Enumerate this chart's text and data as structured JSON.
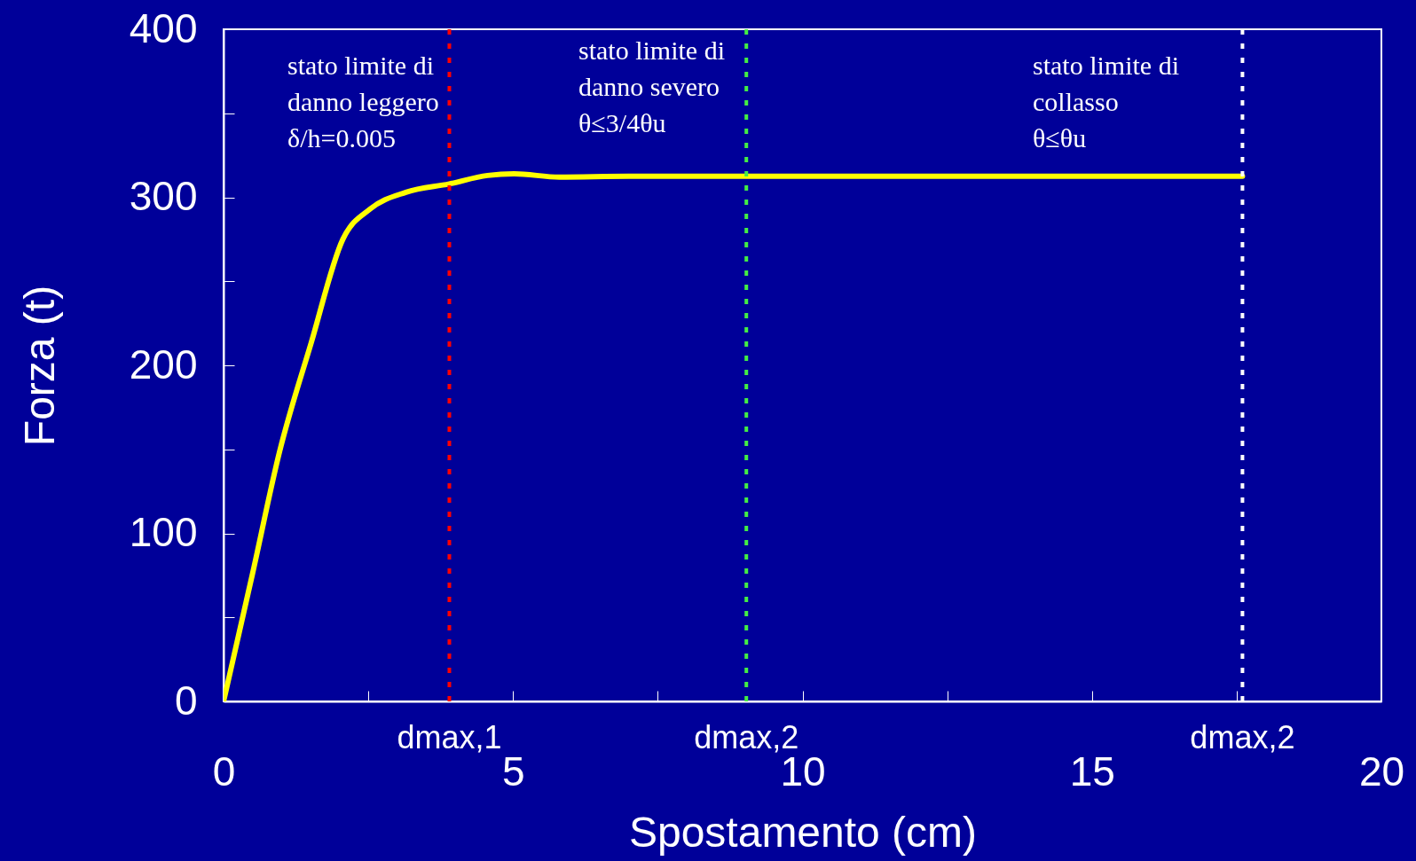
{
  "chart_data": {
    "type": "line",
    "xlabel": "Spostamento (cm)",
    "ylabel": "Forza (t)",
    "x": [
      0,
      0.5,
      0.97,
      1.51,
      2.06,
      2.53,
      3.15,
      3.9,
      4.56,
      5.02,
      5.8,
      7,
      10,
      17.6
    ],
    "series": [
      {
        "color": "#ffff00",
        "values": [
          0,
          76,
          149,
          213,
          275,
          293,
          303,
          308,
          313,
          314,
          312,
          312.5,
          312.5,
          312.5
        ]
      }
    ],
    "xlim": [
      0,
      20
    ],
    "xticks": [
      0,
      {
        "value": 2.5,
        "label": null
      },
      5,
      {
        "value": 7.5,
        "label": null
      },
      10,
      {
        "value": 12.5,
        "label": null
      },
      15,
      {
        "value": 17.5,
        "label": null
      },
      20
    ],
    "ylim": [
      0,
      400
    ],
    "yticks": [
      0,
      {
        "value": 50,
        "label": null
      },
      100,
      {
        "value": 150,
        "label": null
      },
      200,
      {
        "value": 250,
        "label": null
      },
      300,
      {
        "value": 350,
        "label": null
      },
      400
    ],
    "grid": false,
    "marker": "none",
    "line_style": "solid",
    "ref_lines": [
      {
        "axis": "x",
        "value": 3.9,
        "label": "dmax,1",
        "color": "#ff0000",
        "line_style": "dotted"
      },
      {
        "axis": "x",
        "value": 9.03,
        "label": "dmax,2",
        "color": "#44ee44",
        "line_style": "dotted"
      },
      {
        "axis": "x",
        "value": 17.6,
        "label": "dmax,2",
        "color": "#ffffff",
        "line_style": "dotted"
      }
    ],
    "annotations": [
      "stato limite di\ndanno leggero\nδ/h=0.005",
      "stato limite di\ndanno severo\nθ≤3/4θu",
      "stato limite di\ncollasso\nθ≤θu"
    ]
  }
}
